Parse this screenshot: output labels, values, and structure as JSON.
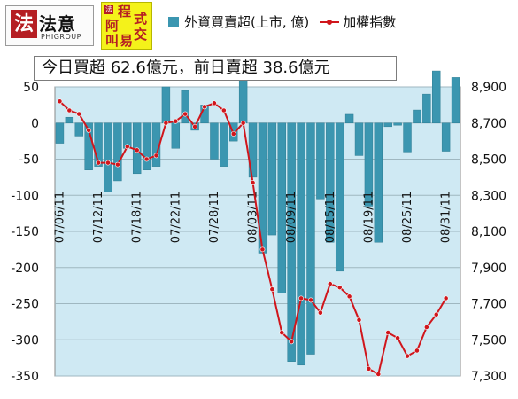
{
  "logos": {
    "fayi_mark": "法",
    "fayi_name": "法意",
    "fayi_sub": "PHIGROUP",
    "jiaoyi_chars": [
      "程",
      "式",
      "阿",
      "交",
      "叫",
      "易"
    ]
  },
  "legend": {
    "bar_label": "外資買賣超(上市, 億)",
    "line_label": "加權指數"
  },
  "summary": "今日買超 62.6億元，前日賣超 38.6億元",
  "colors": {
    "bar": "#3b96b0",
    "line": "#d0161c",
    "plot_bg": "#cfe9f3"
  },
  "chart_data": {
    "type": "bar+line",
    "x_tick_labels": [
      "07/06/11",
      "07/12/11",
      "07/18/11",
      "07/22/11",
      "07/28/11",
      "08/03/11",
      "08/09/11",
      "08/15/11",
      "08/19/11",
      "08/25/11",
      "08/31/11"
    ],
    "x_tick_index": [
      0,
      4,
      8,
      12,
      16,
      20,
      24,
      28,
      32,
      36,
      40
    ],
    "y_left": {
      "range": [
        -350,
        50
      ],
      "ticks": [
        50,
        0,
        -50,
        -100,
        -150,
        -200,
        -250,
        -300,
        -350
      ]
    },
    "y_right": {
      "range": [
        7300,
        8900
      ],
      "ticks": [
        "8,900",
        "8,700",
        "8,500",
        "8,300",
        "8,100",
        "7,900",
        "7,700",
        "7,500",
        "7,300"
      ]
    },
    "grid": "horizontal",
    "series": [
      {
        "axis": "left",
        "kind": "bar",
        "values": [
          -28,
          8,
          -18,
          -65,
          -60,
          -95,
          -80,
          -35,
          -70,
          -65,
          -60,
          50,
          -35,
          45,
          -10,
          25,
          -50,
          -60,
          -25,
          60,
          -75,
          -180,
          -155,
          -235,
          -330,
          -335,
          -320,
          -105,
          -165,
          -205,
          12,
          -45,
          -115,
          -165,
          -5,
          -3,
          -40,
          18,
          40,
          72,
          -39,
          63
        ]
      },
      {
        "axis": "right",
        "kind": "line",
        "values": [
          8820,
          8770,
          8750,
          8660,
          8480,
          8480,
          8470,
          8570,
          8550,
          8500,
          8520,
          8700,
          8710,
          8750,
          8680,
          8790,
          8810,
          8770,
          8640,
          8700,
          8370,
          8000,
          7780,
          7540,
          7490,
          7730,
          7720,
          7650,
          7810,
          7790,
          7740,
          7610,
          7340,
          7310,
          7540,
          7510,
          7410,
          7440,
          7570,
          7640,
          7730
        ]
      }
    ]
  }
}
